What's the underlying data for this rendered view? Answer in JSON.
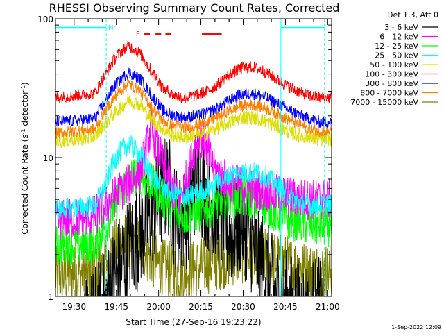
{
  "chart_data": {
    "type": "line",
    "title": "RHESSI Observing Summary Count Rates, Corrected",
    "xlabel": "Start Time (27-Sep-16 19:23:22)",
    "ylabel": "Corrected Count Rate (s",
    "ylabel_sup1": "-1",
    "ylabel_mid": " detector",
    "ylabel_sup2": "-1",
    "ylabel_end": ")",
    "yscale": "log",
    "ylim": [
      1,
      100
    ],
    "xlim_minutes": [
      0,
      98
    ],
    "x_ticks": [
      {
        "label": "19:30",
        "minute": 6.6
      },
      {
        "label": "19:45",
        "minute": 21.6
      },
      {
        "label": "20:00",
        "minute": 36.6
      },
      {
        "label": "20:15",
        "minute": 51.6
      },
      {
        "label": "20:30",
        "minute": 66.6
      },
      {
        "label": "20:45",
        "minute": 81.6
      },
      {
        "label": "21:00",
        "minute": 96.6
      }
    ],
    "y_ticks": [
      {
        "label": "1",
        "value": 1
      },
      {
        "label": "10",
        "value": 10
      },
      {
        "label": "100",
        "value": 100
      }
    ],
    "legend_title": "Det 1,3, Att 0",
    "legend_position": "right",
    "footer_date": "1-Sep-2022 12:09",
    "series": [
      {
        "name": "3 - 6 keV",
        "color": "#000000",
        "x": [
          0,
          18,
          22,
          26,
          30,
          36,
          40,
          42,
          44,
          48,
          50,
          52,
          56,
          62,
          66,
          70,
          74,
          78,
          82,
          86,
          90,
          94,
          98
        ],
        "values": [
          0,
          0.9,
          1.5,
          2.2,
          2.8,
          4.5,
          6.5,
          4.0,
          3.2,
          4.2,
          7.5,
          6.2,
          4.0,
          2.8,
          3.5,
          2.4,
          1.6,
          1.0,
          0.9,
          0.8,
          0.8,
          0.8,
          0
        ]
      },
      {
        "name": "6 - 12 keV",
        "color": "#ff00ff",
        "x": [
          0,
          14,
          18,
          22,
          26,
          30,
          32,
          34,
          36,
          38,
          40,
          42,
          44,
          46,
          48,
          50,
          52,
          54,
          56,
          58,
          62,
          70,
          78,
          86,
          94,
          98
        ],
        "values": [
          3.5,
          3.8,
          4.5,
          5.5,
          6.5,
          8.0,
          11,
          16,
          12,
          9,
          7.0,
          5.5,
          5.0,
          6.5,
          9.0,
          13,
          14,
          11,
          8.5,
          7.5,
          6.5,
          6.0,
          5.5,
          5.0,
          5.0,
          5.0
        ]
      },
      {
        "name": "12 - 25 keV",
        "color": "#00ff00",
        "x": [
          0,
          14,
          18,
          22,
          26,
          30,
          34,
          38,
          42,
          46,
          50,
          54,
          58,
          62,
          66,
          70,
          74,
          78,
          82,
          86,
          90,
          94,
          98
        ],
        "values": [
          2.3,
          2.4,
          3.2,
          5.0,
          7.0,
          7.6,
          6.5,
          5.0,
          4.2,
          3.8,
          4.0,
          4.3,
          4.6,
          5.0,
          5.2,
          5.0,
          4.5,
          4.0,
          3.6,
          3.4,
          3.3,
          3.2,
          3.2
        ]
      },
      {
        "name": "25 - 50 keV",
        "color": "#00ffff",
        "x": [
          0,
          14,
          18,
          22,
          26,
          30,
          34,
          38,
          42,
          46,
          50,
          54,
          58,
          62,
          66,
          70,
          74,
          78,
          82,
          86,
          90,
          94,
          98
        ],
        "values": [
          4.2,
          4.5,
          6.5,
          10.5,
          12.5,
          10.5,
          7.5,
          6.0,
          5.5,
          5.2,
          5.5,
          6.0,
          6.8,
          7.4,
          7.8,
          7.8,
          7.4,
          6.5,
          5.5,
          4.8,
          4.6,
          4.6,
          4.6
        ]
      },
      {
        "name": "50 - 100 keV",
        "color": "#dddd00",
        "x": [
          0,
          14,
          18,
          22,
          26,
          30,
          34,
          38,
          42,
          46,
          50,
          54,
          58,
          62,
          66,
          70,
          74,
          78,
          82,
          86,
          90,
          94,
          98
        ],
        "values": [
          13,
          14,
          18,
          22,
          26,
          24,
          19,
          16,
          14.5,
          14,
          14.5,
          15,
          16.5,
          18,
          19.5,
          19.5,
          18.5,
          17,
          15.5,
          14.5,
          14,
          13.5,
          13.5
        ]
      },
      {
        "name": "100 - 300 keV",
        "color": "#ff0000",
        "x": [
          0,
          14,
          18,
          22,
          26,
          30,
          34,
          38,
          42,
          46,
          50,
          54,
          58,
          62,
          66,
          70,
          74,
          78,
          82,
          86,
          90,
          94,
          98
        ],
        "values": [
          27,
          29,
          40,
          55,
          64,
          56,
          42,
          32,
          28,
          27,
          28,
          30,
          34,
          40,
          44,
          45,
          42,
          37,
          33,
          30,
          28,
          27,
          27
        ]
      },
      {
        "name": "300 - 800 keV",
        "color": "#0000ff",
        "x": [
          0,
          14,
          18,
          22,
          26,
          30,
          34,
          38,
          42,
          46,
          50,
          54,
          58,
          62,
          66,
          70,
          74,
          78,
          82,
          86,
          90,
          94,
          98
        ],
        "values": [
          18,
          19,
          26,
          35,
          41,
          37,
          28,
          22,
          20,
          19.5,
          20,
          21,
          23,
          26,
          28.5,
          29,
          27.5,
          25,
          22.5,
          20.5,
          19,
          18,
          18
        ]
      },
      {
        "name": "800 - 7000 keV",
        "color": "#ff8000",
        "x": [
          0,
          14,
          18,
          22,
          26,
          30,
          34,
          38,
          42,
          46,
          50,
          54,
          58,
          62,
          66,
          70,
          74,
          78,
          82,
          86,
          90,
          94,
          98
        ],
        "values": [
          15,
          16,
          22,
          29,
          34,
          30,
          23,
          18.5,
          17,
          16.5,
          17,
          18,
          20,
          22,
          23.5,
          24,
          23,
          21,
          19,
          17.5,
          16,
          15.5,
          15.5
        ]
      },
      {
        "name": "7000 - 15000 keV",
        "color": "#808000",
        "x": [
          0,
          14,
          18,
          22,
          26,
          30,
          34,
          38,
          42,
          46,
          50,
          54,
          58,
          62,
          66,
          70,
          74,
          78,
          82,
          86,
          90,
          94,
          98
        ],
        "values": [
          1.4,
          1.5,
          1.8,
          2.3,
          2.6,
          2.3,
          1.9,
          1.6,
          1.5,
          1.5,
          1.6,
          1.7,
          1.8,
          1.9,
          2.0,
          2.0,
          1.9,
          1.8,
          1.7,
          1.6,
          1.5,
          1.5,
          1.5
        ]
      }
    ],
    "annotations": [
      {
        "label": "N",
        "color": "#00ffff",
        "kind": "night",
        "spans_minutes": [
          [
            0,
            18
          ],
          [
            80,
            95.5
          ]
        ]
      },
      {
        "label": "F",
        "color": "#ff0000",
        "kind": "flare",
        "spans_minutes": [
          [
            31.5,
            33.5
          ],
          [
            35.5,
            37.5
          ],
          [
            39,
            41
          ],
          [
            52,
            59
          ]
        ]
      }
    ]
  }
}
